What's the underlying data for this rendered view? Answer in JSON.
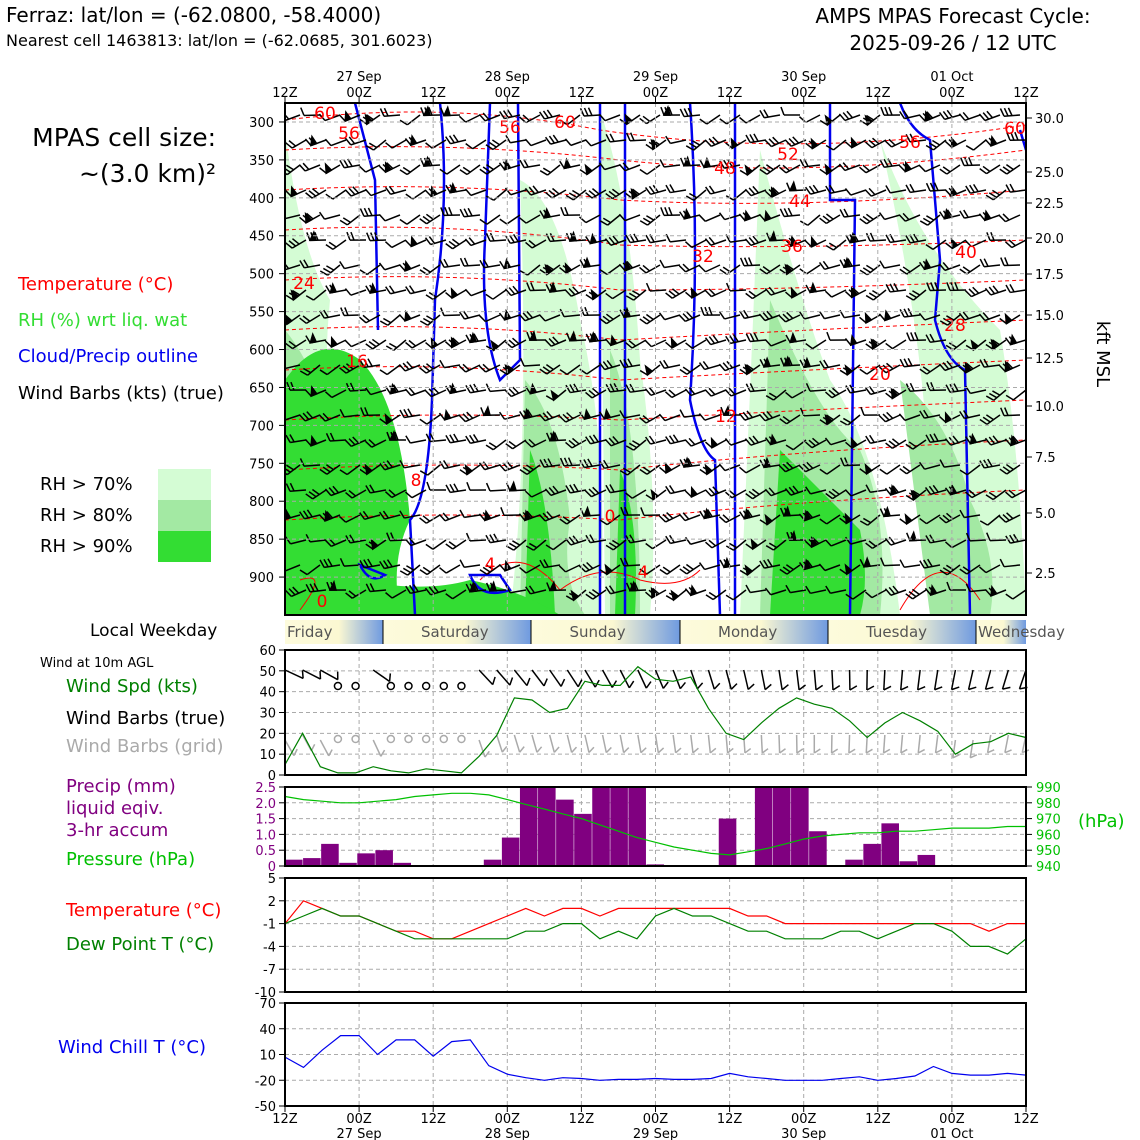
{
  "header": {
    "station_line": "Ferraz: lat/lon = (-62.0800, -58.4000)",
    "cell_line": "Nearest cell 1463813: lat/lon = (-62.0685, 301.6023)",
    "title_right_1": "AMPS MPAS Forecast Cycle:",
    "title_right_2": "2025-09-26 / 12 UTC"
  },
  "sidebar": {
    "cell_size_1": "MPAS cell size:",
    "cell_size_2": "~(3.0 km)²",
    "legend": {
      "temperature": "Temperature (°C)",
      "rh": "RH (%) wrt liq. wat",
      "cloud": "Cloud/Precip outline",
      "barbs": "Wind Barbs (kts) (true)"
    },
    "rh_levels": [
      "RH > 70%",
      "RH > 80%",
      "RH > 90%"
    ],
    "rh_colors": [
      "#d4fcd4",
      "#a3e9a3",
      "#33dd33"
    ],
    "weekday_label": "Local Weekday",
    "wind10_title": "Wind at 10m AGL",
    "wind_panel": {
      "spd": "Wind Spd (kts)",
      "barbs_true": "Wind Barbs (true)",
      "barbs_grid": "Wind Barbs (grid)"
    },
    "precip_panel": {
      "line1": "Precip (mm)",
      "line2": "liquid eqiv.",
      "line3": "3-hr accum",
      "pressure": "Pressure (hPa)"
    },
    "temp_panel": {
      "temp": "Temperature (°C)",
      "dew": "Dew Point T (°C)"
    },
    "chill_panel": {
      "label": "Wind Chill T (°C)"
    }
  },
  "colors": {
    "temp": "#ff0000",
    "rh": "#33dd33",
    "cloud": "#0000ee",
    "precip": "#800080",
    "pressure": "#00c000",
    "dew": "#008000",
    "chill": "#0000ee",
    "grid_barbs": "#aaaaaa"
  },
  "chart_data": [
    {
      "type": "heatmap",
      "description": "time-height cross section",
      "x_ticks": [
        "12Z",
        "00Z",
        "12Z",
        "00Z",
        "12Z",
        "00Z",
        "12Z",
        "00Z",
        "12Z",
        "00Z",
        "12Z"
      ],
      "x_dates": [
        "27 Sep",
        "28 Sep",
        "29 Sep",
        "30 Sep",
        "01 Oct"
      ],
      "y_label_right": "kft MSL",
      "pressure_ticks": [
        300,
        350,
        400,
        450,
        500,
        550,
        600,
        650,
        700,
        750,
        800,
        850,
        900
      ],
      "kft_ticks": [
        "30.0",
        "25.0",
        "22.5",
        "20.0",
        "17.5",
        "15.0",
        "12.5",
        "10.0",
        "7.5",
        "5.0",
        "2.5"
      ],
      "temp_contour_labels": [
        "60",
        "56",
        "56",
        "60",
        "48",
        "52",
        "44",
        "56",
        "60",
        "32",
        "36",
        "40",
        "24",
        "28",
        "16",
        "20",
        "12",
        "8",
        "0",
        "4",
        "4",
        "0"
      ]
    },
    {
      "type": "table",
      "weekdays": [
        "Friday",
        "Saturday",
        "Sunday",
        "Monday",
        "Tuesday",
        "Wednesday"
      ]
    },
    {
      "type": "line",
      "ylim": [
        0,
        60
      ],
      "y_ticks": [
        "60",
        "50",
        "40",
        "30",
        "20",
        "10",
        "0"
      ],
      "series": [
        {
          "values": [
            5,
            20,
            4,
            1,
            1,
            4,
            2,
            1,
            3,
            2,
            1,
            9,
            19,
            37,
            36,
            30,
            32,
            45,
            43,
            43,
            52,
            46,
            45,
            47,
            32,
            20,
            17,
            25,
            32,
            37,
            34,
            32,
            26,
            18,
            25,
            30,
            26,
            21,
            10,
            15,
            16,
            20,
            18
          ]
        }
      ]
    },
    {
      "type": "bar",
      "ylim": [
        0,
        2.5
      ],
      "y_ticks": [
        "2.5",
        "2.0",
        "1.5",
        "1.0",
        "0.5",
        "0"
      ],
      "y2_ticks": [
        "990",
        "980",
        "970",
        "960",
        "950",
        "940"
      ],
      "y2_label": "(hPa)",
      "values": [
        0.2,
        0.25,
        0.7,
        0.1,
        0.4,
        0.5,
        0.1,
        0,
        0,
        0,
        0,
        0.2,
        0.9,
        2.5,
        2.5,
        2.1,
        1.65,
        2.5,
        2.5,
        2.5,
        0.05,
        0,
        0,
        0,
        1.5,
        0,
        2.5,
        2.5,
        2.5,
        1.1,
        0,
        0.2,
        0.7,
        1.35,
        0.15,
        0.35,
        0,
        0,
        0,
        0,
        0
      ],
      "pressure": [
        984,
        982,
        981,
        980,
        980,
        981,
        982,
        984,
        985,
        986,
        986,
        985,
        982,
        979,
        976,
        973,
        970,
        966,
        962,
        958,
        955,
        952,
        950,
        948,
        947,
        949,
        951,
        954,
        957,
        959,
        960,
        961,
        961,
        962,
        962,
        963,
        964,
        964,
        964,
        965,
        965
      ]
    },
    {
      "type": "line",
      "ylim": [
        -10,
        5
      ],
      "y_ticks": [
        "5",
        "2",
        "-1",
        "-4",
        "-7",
        "-10"
      ],
      "series": [
        {
          "values": [
            -1,
            2,
            1,
            0,
            0,
            -1,
            -2,
            -2,
            -3,
            -3,
            -2,
            -1,
            0,
            1,
            0,
            1,
            1,
            0,
            1,
            1,
            1,
            1,
            1,
            1,
            1,
            0,
            0,
            -1,
            -1,
            -1,
            -1,
            -1,
            -1,
            -1,
            -1,
            -1,
            -1,
            -1,
            -2,
            -1,
            -1
          ]
        },
        {
          "values": [
            -1,
            0,
            1,
            0,
            0,
            -1,
            -2,
            -3,
            -3,
            -3,
            -3,
            -3,
            -3,
            -2,
            -2,
            -1,
            -1,
            -3,
            -2,
            -3,
            0,
            1,
            0,
            0,
            -1,
            -2,
            -2,
            -3,
            -3,
            -3,
            -2,
            -2,
            -3,
            -2,
            -1,
            -1,
            -2,
            -4,
            -4,
            -5,
            -3
          ]
        }
      ]
    },
    {
      "type": "line",
      "ylim": [
        -50,
        70
      ],
      "y_ticks": [
        "70",
        "40",
        "10",
        "-20",
        "-50"
      ],
      "series": [
        {
          "values": [
            7,
            -5,
            15,
            32,
            32,
            10,
            27,
            27,
            8,
            25,
            27,
            -3,
            -13,
            -17,
            -20,
            -17,
            -18,
            -20,
            -19,
            -19,
            -18,
            -19,
            -19,
            -18,
            -12,
            -16,
            -18,
            -20,
            -20,
            -20,
            -18,
            -16,
            -20,
            -18,
            -15,
            -4,
            -12,
            -14,
            -14,
            -12,
            -14
          ]
        }
      ]
    }
  ],
  "bottom_axis": {
    "ticks": [
      "12Z",
      "00Z",
      "12Z",
      "00Z",
      "12Z",
      "00Z",
      "12Z",
      "00Z",
      "12Z",
      "00Z",
      "12Z"
    ],
    "dates": [
      "27 Sep",
      "28 Sep",
      "29 Sep",
      "30 Sep",
      "01 Oct"
    ]
  }
}
